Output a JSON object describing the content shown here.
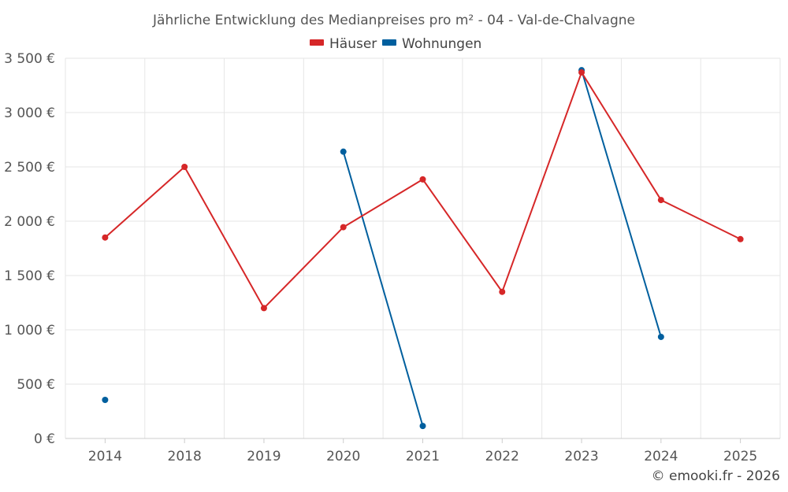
{
  "chart_data": {
    "type": "line",
    "title": "Jährliche Entwicklung des Medianpreises pro m² - 04 - Val-de-Chalvagne",
    "categories": [
      "2014",
      "2018",
      "2019",
      "2020",
      "2021",
      "2022",
      "2023",
      "2024",
      "2025"
    ],
    "series": [
      {
        "name": "Häuser",
        "color": "#d62728",
        "values": [
          1850,
          2500,
          1200,
          1945,
          2385,
          1350,
          3370,
          2195,
          1835
        ]
      },
      {
        "name": "Wohnungen",
        "color": "#005f9e",
        "values": [
          355,
          null,
          null,
          2640,
          115,
          null,
          3390,
          935,
          null
        ]
      }
    ],
    "ylim": [
      0,
      3500
    ],
    "yticks": [
      0,
      500,
      1000,
      1500,
      2000,
      2500,
      3000,
      3500
    ],
    "ytick_labels": [
      "0 €",
      "500 €",
      "1 000 €",
      "1 500 €",
      "2 000 €",
      "2 500 €",
      "3 000 €",
      "3 500 €"
    ],
    "xlabel": "",
    "ylabel": "",
    "legend_position": "top-center",
    "grid": true
  },
  "credit": "© emooki.fr - 2026"
}
